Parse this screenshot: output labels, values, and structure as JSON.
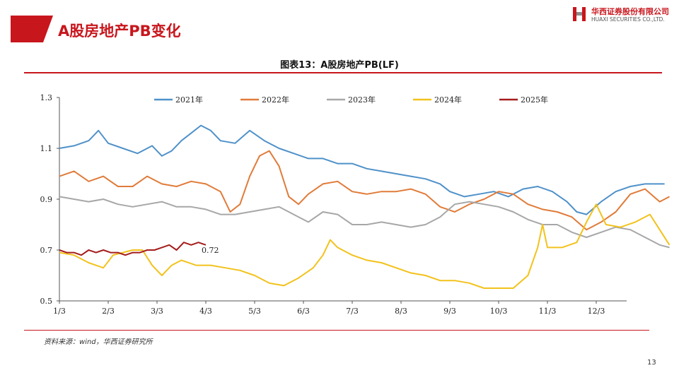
{
  "header": {
    "title": "A股房地产PB变化"
  },
  "logo": {
    "cn": "华西证券股份有限公司",
    "en": "HUAXI SECURITIES CO.,LTD."
  },
  "figure_title": "图表13：A股房地产PB(LF)",
  "source": "资料来源：wind，华西证券研究所",
  "page_number": "13",
  "chart_data": {
    "type": "line",
    "title": "图表13：A股房地产PB(LF)",
    "xlabel": "",
    "ylabel": "",
    "ylim": [
      0.5,
      1.3
    ],
    "yticks": [
      "0.5",
      "0.7",
      "0.9",
      "1.1",
      "1.3"
    ],
    "x_ticks": [
      "1/3",
      "2/3",
      "3/3",
      "4/3",
      "5/3",
      "6/3",
      "7/3",
      "8/3",
      "9/3",
      "10/3",
      "11/3",
      "12/3"
    ],
    "legend_position": "top",
    "annotation": {
      "text": "0.72",
      "series": "2025年"
    },
    "series": [
      {
        "name": "2021年",
        "color": "#4f91c9",
        "points": [
          [
            0,
            1.1
          ],
          [
            0.3,
            1.11
          ],
          [
            0.6,
            1.13
          ],
          [
            0.8,
            1.17
          ],
          [
            1.0,
            1.12
          ],
          [
            1.3,
            1.1
          ],
          [
            1.6,
            1.08
          ],
          [
            1.9,
            1.11
          ],
          [
            2.1,
            1.07
          ],
          [
            2.3,
            1.09
          ],
          [
            2.5,
            1.13
          ],
          [
            2.7,
            1.16
          ],
          [
            2.9,
            1.19
          ],
          [
            3.1,
            1.17
          ],
          [
            3.3,
            1.13
          ],
          [
            3.6,
            1.12
          ],
          [
            3.9,
            1.17
          ],
          [
            4.2,
            1.13
          ],
          [
            4.5,
            1.1
          ],
          [
            4.8,
            1.08
          ],
          [
            5.1,
            1.06
          ],
          [
            5.4,
            1.06
          ],
          [
            5.7,
            1.04
          ],
          [
            6.0,
            1.04
          ],
          [
            6.3,
            1.02
          ],
          [
            6.6,
            1.01
          ],
          [
            6.9,
            1.0
          ],
          [
            7.2,
            0.99
          ],
          [
            7.5,
            0.98
          ],
          [
            7.8,
            0.96
          ],
          [
            8.0,
            0.93
          ],
          [
            8.3,
            0.91
          ],
          [
            8.6,
            0.92
          ],
          [
            8.9,
            0.93
          ],
          [
            9.2,
            0.91
          ],
          [
            9.5,
            0.94
          ],
          [
            9.8,
            0.95
          ],
          [
            10.1,
            0.93
          ],
          [
            10.4,
            0.89
          ],
          [
            10.6,
            0.85
          ],
          [
            10.8,
            0.84
          ],
          [
            11.1,
            0.89
          ],
          [
            11.4,
            0.93
          ],
          [
            11.7,
            0.95
          ],
          [
            12.0,
            0.96
          ],
          [
            12.4,
            0.96
          ]
        ]
      },
      {
        "name": "2022年",
        "color": "#e07b39",
        "points": [
          [
            0,
            0.99
          ],
          [
            0.3,
            1.01
          ],
          [
            0.6,
            0.97
          ],
          [
            0.9,
            0.99
          ],
          [
            1.2,
            0.95
          ],
          [
            1.5,
            0.95
          ],
          [
            1.8,
            0.99
          ],
          [
            2.1,
            0.96
          ],
          [
            2.4,
            0.95
          ],
          [
            2.7,
            0.97
          ],
          [
            3.0,
            0.96
          ],
          [
            3.3,
            0.93
          ],
          [
            3.5,
            0.85
          ],
          [
            3.7,
            0.88
          ],
          [
            3.9,
            0.99
          ],
          [
            4.1,
            1.07
          ],
          [
            4.3,
            1.09
          ],
          [
            4.5,
            1.03
          ],
          [
            4.7,
            0.91
          ],
          [
            4.9,
            0.88
          ],
          [
            5.1,
            0.92
          ],
          [
            5.4,
            0.96
          ],
          [
            5.7,
            0.97
          ],
          [
            6.0,
            0.93
          ],
          [
            6.3,
            0.92
          ],
          [
            6.6,
            0.93
          ],
          [
            6.9,
            0.93
          ],
          [
            7.2,
            0.94
          ],
          [
            7.5,
            0.92
          ],
          [
            7.8,
            0.87
          ],
          [
            8.1,
            0.85
          ],
          [
            8.4,
            0.88
          ],
          [
            8.7,
            0.9
          ],
          [
            9.0,
            0.93
          ],
          [
            9.3,
            0.92
          ],
          [
            9.6,
            0.88
          ],
          [
            9.9,
            0.86
          ],
          [
            10.2,
            0.85
          ],
          [
            10.5,
            0.83
          ],
          [
            10.8,
            0.78
          ],
          [
            11.1,
            0.81
          ],
          [
            11.4,
            0.85
          ],
          [
            11.7,
            0.92
          ],
          [
            12.0,
            0.94
          ],
          [
            12.3,
            0.89
          ],
          [
            12.5,
            0.91
          ]
        ]
      },
      {
        "name": "2023年",
        "color": "#a7a7a7",
        "points": [
          [
            0,
            0.91
          ],
          [
            0.3,
            0.9
          ],
          [
            0.6,
            0.89
          ],
          [
            0.9,
            0.9
          ],
          [
            1.2,
            0.88
          ],
          [
            1.5,
            0.87
          ],
          [
            1.8,
            0.88
          ],
          [
            2.1,
            0.89
          ],
          [
            2.4,
            0.87
          ],
          [
            2.7,
            0.87
          ],
          [
            3.0,
            0.86
          ],
          [
            3.3,
            0.84
          ],
          [
            3.6,
            0.84
          ],
          [
            3.9,
            0.85
          ],
          [
            4.2,
            0.86
          ],
          [
            4.5,
            0.87
          ],
          [
            4.8,
            0.84
          ],
          [
            5.1,
            0.81
          ],
          [
            5.4,
            0.85
          ],
          [
            5.7,
            0.84
          ],
          [
            6.0,
            0.8
          ],
          [
            6.3,
            0.8
          ],
          [
            6.6,
            0.81
          ],
          [
            6.9,
            0.8
          ],
          [
            7.2,
            0.79
          ],
          [
            7.5,
            0.8
          ],
          [
            7.8,
            0.83
          ],
          [
            8.1,
            0.88
          ],
          [
            8.4,
            0.89
          ],
          [
            8.7,
            0.88
          ],
          [
            9.0,
            0.87
          ],
          [
            9.3,
            0.85
          ],
          [
            9.6,
            0.82
          ],
          [
            9.9,
            0.8
          ],
          [
            10.2,
            0.8
          ],
          [
            10.5,
            0.77
          ],
          [
            10.8,
            0.75
          ],
          [
            11.1,
            0.77
          ],
          [
            11.4,
            0.79
          ],
          [
            11.7,
            0.78
          ],
          [
            12.0,
            0.75
          ],
          [
            12.3,
            0.72
          ],
          [
            12.5,
            0.71
          ]
        ]
      },
      {
        "name": "2024年",
        "color": "#f2c21b",
        "points": [
          [
            0,
            0.69
          ],
          [
            0.3,
            0.68
          ],
          [
            0.6,
            0.65
          ],
          [
            0.9,
            0.63
          ],
          [
            1.1,
            0.68
          ],
          [
            1.3,
            0.69
          ],
          [
            1.5,
            0.7
          ],
          [
            1.7,
            0.7
          ],
          [
            1.9,
            0.64
          ],
          [
            2.1,
            0.6
          ],
          [
            2.3,
            0.64
          ],
          [
            2.5,
            0.66
          ],
          [
            2.8,
            0.64
          ],
          [
            3.1,
            0.64
          ],
          [
            3.4,
            0.63
          ],
          [
            3.7,
            0.62
          ],
          [
            4.0,
            0.6
          ],
          [
            4.3,
            0.57
          ],
          [
            4.6,
            0.56
          ],
          [
            4.9,
            0.59
          ],
          [
            5.2,
            0.63
          ],
          [
            5.4,
            0.68
          ],
          [
            5.55,
            0.74
          ],
          [
            5.7,
            0.71
          ],
          [
            6.0,
            0.68
          ],
          [
            6.3,
            0.66
          ],
          [
            6.6,
            0.65
          ],
          [
            6.9,
            0.63
          ],
          [
            7.2,
            0.61
          ],
          [
            7.5,
            0.6
          ],
          [
            7.8,
            0.58
          ],
          [
            8.1,
            0.58
          ],
          [
            8.4,
            0.57
          ],
          [
            8.7,
            0.55
          ],
          [
            9.0,
            0.55
          ],
          [
            9.3,
            0.55
          ],
          [
            9.6,
            0.6
          ],
          [
            9.8,
            0.71
          ],
          [
            9.9,
            0.8
          ],
          [
            10.0,
            0.71
          ],
          [
            10.3,
            0.71
          ],
          [
            10.6,
            0.73
          ],
          [
            10.8,
            0.81
          ],
          [
            11.0,
            0.88
          ],
          [
            11.2,
            0.8
          ],
          [
            11.5,
            0.79
          ],
          [
            11.8,
            0.81
          ],
          [
            12.1,
            0.84
          ],
          [
            12.3,
            0.78
          ],
          [
            12.5,
            0.72
          ]
        ]
      },
      {
        "name": "2025年",
        "color": "#a51c1c",
        "points": [
          [
            0,
            0.7
          ],
          [
            0.15,
            0.69
          ],
          [
            0.3,
            0.69
          ],
          [
            0.45,
            0.68
          ],
          [
            0.6,
            0.7
          ],
          [
            0.75,
            0.69
          ],
          [
            0.9,
            0.7
          ],
          [
            1.05,
            0.69
          ],
          [
            1.2,
            0.69
          ],
          [
            1.35,
            0.68
          ],
          [
            1.5,
            0.69
          ],
          [
            1.65,
            0.69
          ],
          [
            1.8,
            0.7
          ],
          [
            1.95,
            0.7
          ],
          [
            2.1,
            0.71
          ],
          [
            2.25,
            0.72
          ],
          [
            2.4,
            0.7
          ],
          [
            2.55,
            0.73
          ],
          [
            2.7,
            0.72
          ],
          [
            2.85,
            0.73
          ],
          [
            3.0,
            0.72
          ]
        ]
      }
    ]
  }
}
